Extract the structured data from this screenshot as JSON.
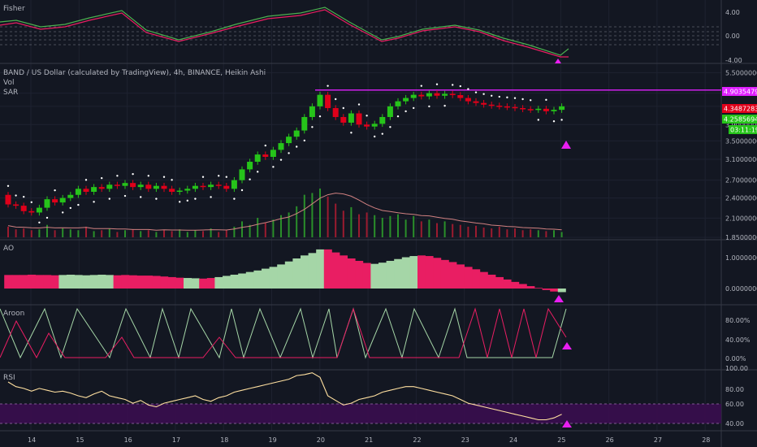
{
  "colors": {
    "bg": "#131722",
    "up": "#26c41a",
    "down": "#e0001a",
    "ao_up": "#a5d6a7",
    "ao_down": "#e91e63",
    "fisher_main": "#e91e63",
    "fisher_signal": "#4caf50",
    "rsi": "#ffe0a0",
    "rsi_band": "#3a0d4f",
    "aroon_up": "#a5d6a7",
    "aroon_down": "#e91e63",
    "marker": "#e91ef0",
    "sar": "#ffffff",
    "resistance": "#e020ff",
    "vol_ma": "#d08080"
  },
  "panes": {
    "fisher": {
      "title": "Fisher",
      "ticks": [
        "4.00",
        "0.00",
        "-4.00"
      ]
    },
    "price": {
      "title": "BAND / US Dollar (calculated by TradingView), 4h, BINANCE, Heikin Ashi",
      "vol_label": "Vol",
      "sar_label": "SAR",
      "ticks": [
        "5.5000000",
        "4.8000000",
        "4.4000000",
        "3.9000000",
        "3.5000000",
        "3.1000000",
        "2.7000000",
        "2.4000000",
        "2.1000000",
        "1.8500000"
      ],
      "price_tags": [
        {
          "text": "4.90354794",
          "color": "#e020ff"
        },
        {
          "text": "4.34872838",
          "color": "#e0001a"
        },
        {
          "text": "4.25856945",
          "color": "#26c41a"
        },
        {
          "text": "03:11:19",
          "color": "#26c41a"
        }
      ]
    },
    "ao": {
      "title": "AO",
      "ticks": [
        "1.00000000",
        "0.00000000"
      ]
    },
    "aroon": {
      "title": "Aroon",
      "ticks": [
        "80.00%",
        "40.00%",
        "0.00%"
      ]
    },
    "rsi": {
      "title": "RSI",
      "ticks": [
        "100.00",
        "80.00",
        "60.00",
        "40.00"
      ]
    }
  },
  "x_axis": [
    "14",
    "15",
    "16",
    "17",
    "18",
    "19",
    "20",
    "21",
    "22",
    "23",
    "24",
    "25",
    "26",
    "27",
    "28"
  ],
  "chart_data": {
    "type": "candlestick",
    "title": "BAND / US Dollar (calculated by TradingView), 4h, BINANCE, Heikin Ashi",
    "candles": [
      [
        2.45,
        2.3
      ],
      [
        2.3,
        2.28
      ],
      [
        2.28,
        2.2
      ],
      [
        2.2,
        2.18
      ],
      [
        2.18,
        2.25
      ],
      [
        2.25,
        2.38
      ],
      [
        2.38,
        2.33
      ],
      [
        2.33,
        2.4
      ],
      [
        2.4,
        2.45
      ],
      [
        2.45,
        2.55
      ],
      [
        2.55,
        2.5
      ],
      [
        2.5,
        2.58
      ],
      [
        2.58,
        2.55
      ],
      [
        2.55,
        2.62
      ],
      [
        2.62,
        2.6
      ],
      [
        2.6,
        2.65
      ],
      [
        2.65,
        2.58
      ],
      [
        2.58,
        2.62
      ],
      [
        2.62,
        2.55
      ],
      [
        2.55,
        2.6
      ],
      [
        2.6,
        2.55
      ],
      [
        2.55,
        2.5
      ],
      [
        2.5,
        2.52
      ],
      [
        2.52,
        2.55
      ],
      [
        2.55,
        2.6
      ],
      [
        2.6,
        2.58
      ],
      [
        2.58,
        2.62
      ],
      [
        2.62,
        2.6
      ],
      [
        2.6,
        2.55
      ],
      [
        2.55,
        2.7
      ],
      [
        2.7,
        2.9
      ],
      [
        2.9,
        3.05
      ],
      [
        3.05,
        3.2
      ],
      [
        3.2,
        3.15
      ],
      [
        3.15,
        3.3
      ],
      [
        3.3,
        3.45
      ],
      [
        3.45,
        3.6
      ],
      [
        3.6,
        3.75
      ],
      [
        3.75,
        4.1
      ],
      [
        4.1,
        4.4
      ],
      [
        4.4,
        4.75
      ],
      [
        4.75,
        4.35
      ],
      [
        4.35,
        4.1
      ],
      [
        4.1,
        3.95
      ],
      [
        3.95,
        4.2
      ],
      [
        4.2,
        3.9
      ],
      [
        3.9,
        3.85
      ],
      [
        3.85,
        3.92
      ],
      [
        3.92,
        4.1
      ],
      [
        4.1,
        4.4
      ],
      [
        4.4,
        4.55
      ],
      [
        4.55,
        4.65
      ],
      [
        4.65,
        4.75
      ],
      [
        4.75,
        4.7
      ],
      [
        4.7,
        4.8
      ],
      [
        4.8,
        4.72
      ],
      [
        4.72,
        4.78
      ],
      [
        4.78,
        4.74
      ],
      [
        4.74,
        4.65
      ],
      [
        4.65,
        4.55
      ],
      [
        4.55,
        4.5
      ],
      [
        4.5,
        4.45
      ],
      [
        4.45,
        4.42
      ],
      [
        4.42,
        4.4
      ],
      [
        4.4,
        4.38
      ],
      [
        4.38,
        4.35
      ],
      [
        4.35,
        4.32
      ],
      [
        4.32,
        4.3
      ],
      [
        4.3,
        4.33
      ],
      [
        4.33,
        4.26
      ],
      [
        4.26,
        4.3
      ],
      [
        4.3,
        4.4
      ]
    ],
    "resistance": 4.9,
    "volume": [
      12,
      9,
      10,
      8,
      9,
      14,
      8,
      10,
      9,
      8,
      12,
      7,
      8,
      10,
      6,
      8,
      9,
      7,
      8,
      6,
      8,
      7,
      9,
      6,
      8,
      7,
      10,
      6,
      8,
      12,
      18,
      14,
      22,
      16,
      20,
      25,
      28,
      35,
      48,
      50,
      55,
      46,
      38,
      30,
      34,
      26,
      28,
      25,
      22,
      24,
      26,
      20,
      24,
      18,
      20,
      16,
      18,
      15,
      14,
      12,
      13,
      11,
      10,
      12,
      9,
      10,
      8,
      9,
      8,
      7,
      8,
      6
    ],
    "ao": [
      0.45,
      0.45,
      0.45,
      0.46,
      0.45,
      0.45,
      0.44,
      0.45,
      0.46,
      0.45,
      0.44,
      0.45,
      0.46,
      0.45,
      0.44,
      0.45,
      0.44,
      0.43,
      0.43,
      0.42,
      0.4,
      0.38,
      0.36,
      0.35,
      0.34,
      0.33,
      0.35,
      0.38,
      0.42,
      0.46,
      0.5,
      0.55,
      0.6,
      0.66,
      0.72,
      0.8,
      0.9,
      1.0,
      1.1,
      1.18,
      1.3,
      1.3,
      1.2,
      1.1,
      1.0,
      0.92,
      0.85,
      0.82,
      0.86,
      0.92,
      0.98,
      1.04,
      1.08,
      1.1,
      1.08,
      1.02,
      0.95,
      0.88,
      0.8,
      0.72,
      0.64,
      0.55,
      0.46,
      0.38,
      0.3,
      0.22,
      0.15,
      0.08,
      0.02,
      -0.05,
      -0.1,
      -0.12
    ],
    "ao_sign": [
      "d",
      "d",
      "d",
      "d",
      "d",
      "d",
      "d",
      "u",
      "u",
      "u",
      "u",
      "u",
      "u",
      "u",
      "d",
      "d",
      "d",
      "d",
      "d",
      "d",
      "d",
      "d",
      "d",
      "u",
      "u",
      "d",
      "d",
      "u",
      "u",
      "u",
      "u",
      "u",
      "u",
      "u",
      "u",
      "u",
      "u",
      "u",
      "u",
      "u",
      "u",
      "d",
      "d",
      "d",
      "d",
      "d",
      "d",
      "u",
      "u",
      "u",
      "u",
      "u",
      "u",
      "d",
      "d",
      "d",
      "d",
      "d",
      "d",
      "d",
      "d",
      "d",
      "d",
      "d",
      "d",
      "d",
      "d",
      "d",
      "d",
      "d",
      "d",
      "u"
    ],
    "rsi": [
      85,
      80,
      78,
      75,
      78,
      76,
      74,
      75,
      73,
      70,
      68,
      72,
      75,
      70,
      68,
      66,
      62,
      65,
      60,
      58,
      62,
      64,
      66,
      68,
      70,
      66,
      64,
      68,
      70,
      74,
      76,
      78,
      80,
      82,
      84,
      86,
      88,
      92,
      93,
      95,
      90,
      70,
      65,
      60,
      62,
      66,
      68,
      70,
      74,
      76,
      78,
      80,
      80,
      78,
      76,
      74,
      72,
      70,
      66,
      62,
      60,
      58,
      56,
      54,
      52,
      50,
      48,
      46,
      44,
      44,
      46,
      50
    ]
  }
}
